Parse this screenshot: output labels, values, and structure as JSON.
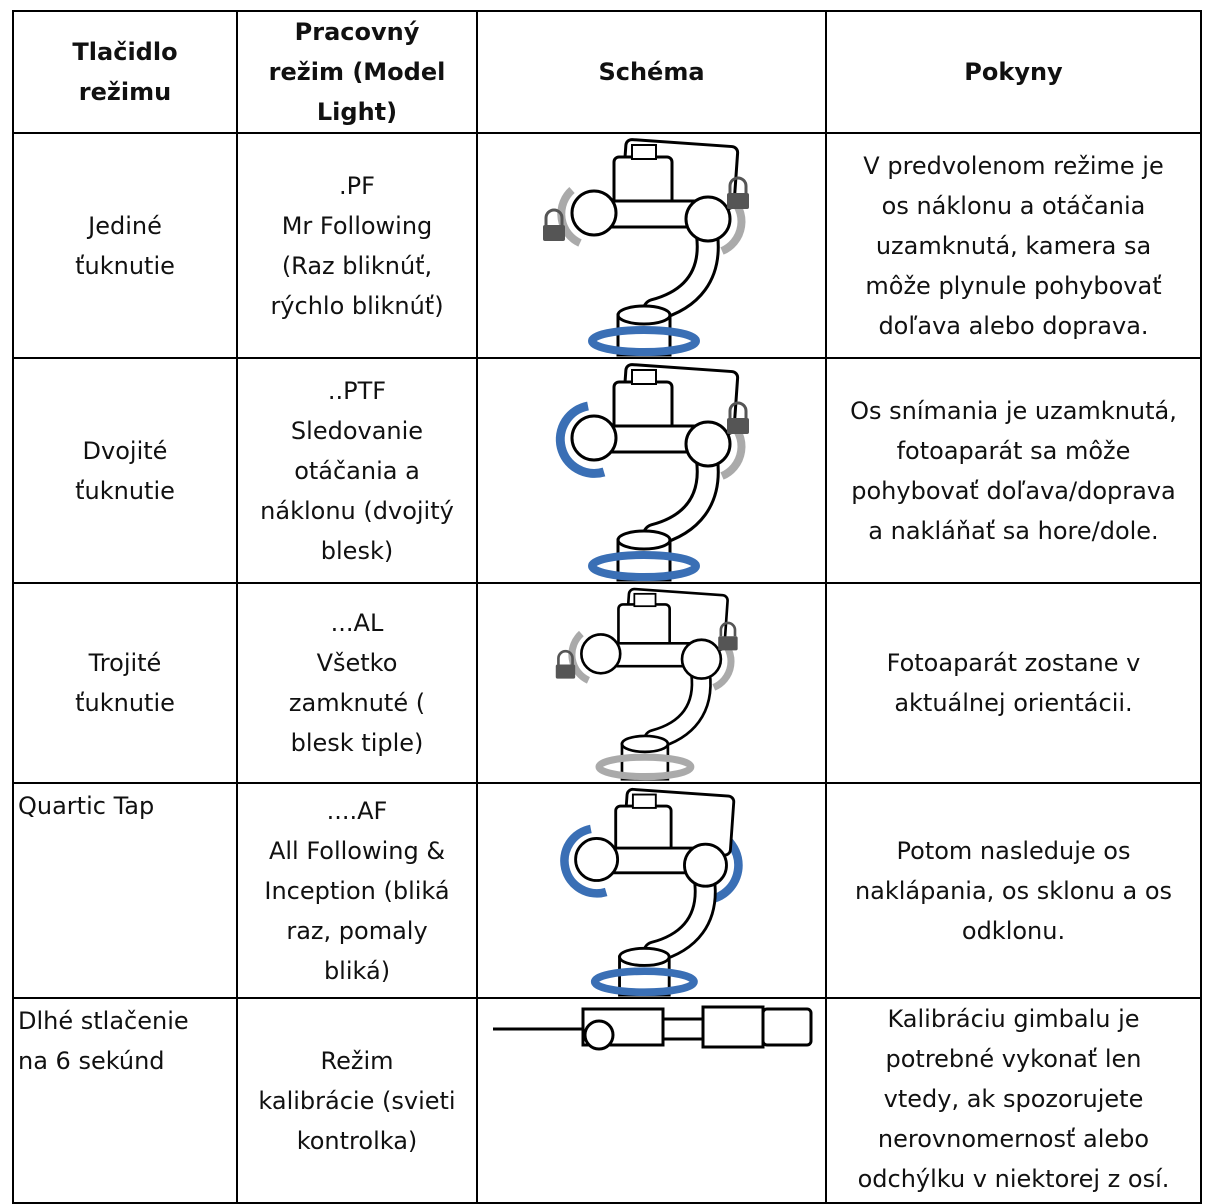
{
  "table": {
    "header": [
      [
        "Tlačidlo",
        "režimu"
      ],
      [
        "Pracovný",
        "režim (Model",
        "Light)"
      ],
      [
        "Schéma"
      ],
      [
        "Pokyny"
      ]
    ],
    "rows": [
      {
        "button": [
          "Jediné",
          "ťuknutie"
        ],
        "mode": [
          ".PF",
          "Mr Following",
          "(Raz bliknúť,",
          "rýchlo bliknúť)"
        ],
        "instructions": [
          "V predvolenom režime je",
          "os náklonu a otáčania",
          "uzamknutá, kamera sa",
          "môže plynule pohybovať",
          "doľava alebo doprava."
        ]
      },
      {
        "button": [
          "Dvojité",
          "ťuknutie"
        ],
        "mode": [
          "..PTF",
          "Sledovanie",
          "otáčania a",
          "náklonu (dvojitý",
          "blesk)"
        ],
        "instructions": [
          "Os snímania je uzamknutá,",
          "fotoaparát sa môže",
          "pohybovať doľava/doprava",
          "a nakláňať sa hore/dole."
        ]
      },
      {
        "button": [
          "Trojité",
          "ťuknutie"
        ],
        "mode": [
          "...AL",
          "Všetko",
          "zamknuté (",
          "blesk tiple)"
        ],
        "instructions": [
          "Fotoaparát zostane v",
          "aktuálnej orientácii."
        ]
      },
      {
        "button": [
          "Quartic Tap"
        ],
        "mode": [
          "....AF",
          "All Following &",
          "Inception (bliká",
          "raz, pomaly",
          "bliká)"
        ],
        "instructions": [
          "Potom nasleduje os",
          "naklápania, os sklonu a os",
          "odklonu."
        ]
      },
      {
        "button": [
          "Dlhé stlačenie",
          "na 6 sekúnd"
        ],
        "mode": [
          "Režim",
          "kalibrácie (svieti",
          "kontrolka)"
        ],
        "instructions": [
          "Kalibráciu gimbalu je",
          "potrebné vykonať len",
          "vtedy, ak spozorujete",
          "nerovnomernosť alebo",
          "odchýlku v niektorej z osí."
        ]
      }
    ]
  }
}
